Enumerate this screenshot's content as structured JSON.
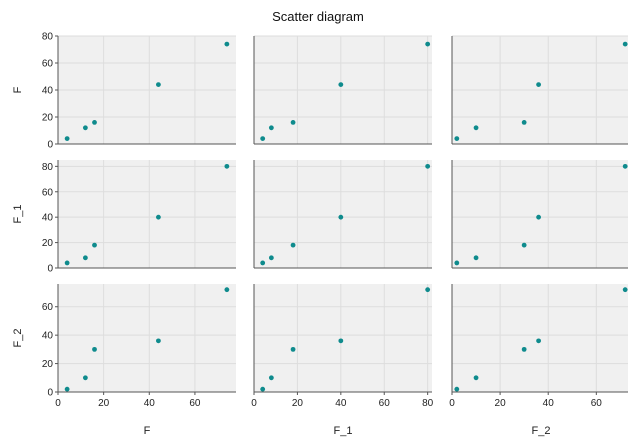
{
  "chart_data": {
    "type": "scatter",
    "title": "Scatter diagram",
    "variables": [
      "F",
      "F_1",
      "F_2"
    ],
    "data": {
      "F": [
        4,
        12,
        16,
        44,
        74
      ],
      "F_1": [
        4,
        8,
        18,
        40,
        80
      ],
      "F_2": [
        2,
        10,
        30,
        36,
        72
      ]
    },
    "axes": {
      "F": {
        "range": [
          0,
          80
        ],
        "ticks": [
          0,
          20,
          40,
          60,
          80
        ]
      },
      "F_1": {
        "range": [
          0,
          85
        ],
        "ticks": [
          0,
          20,
          40,
          60,
          80
        ]
      },
      "F_2": {
        "range": [
          0,
          76
        ],
        "ticks": [
          0,
          20,
          40,
          60
        ]
      }
    },
    "x_axes": {
      "F": {
        "range": [
          0,
          78
        ],
        "ticks": [
          0,
          20,
          40,
          60
        ]
      },
      "F_1": {
        "range": [
          0,
          82
        ],
        "ticks": [
          0,
          20,
          40,
          60,
          80
        ]
      },
      "F_2": {
        "range": [
          0,
          74
        ],
        "ticks": [
          0,
          20,
          40,
          60
        ]
      }
    },
    "grid": true,
    "point_color": "#0f8b8d",
    "panel_background": "#f0f0f0",
    "grid_color": "#dddddd"
  }
}
